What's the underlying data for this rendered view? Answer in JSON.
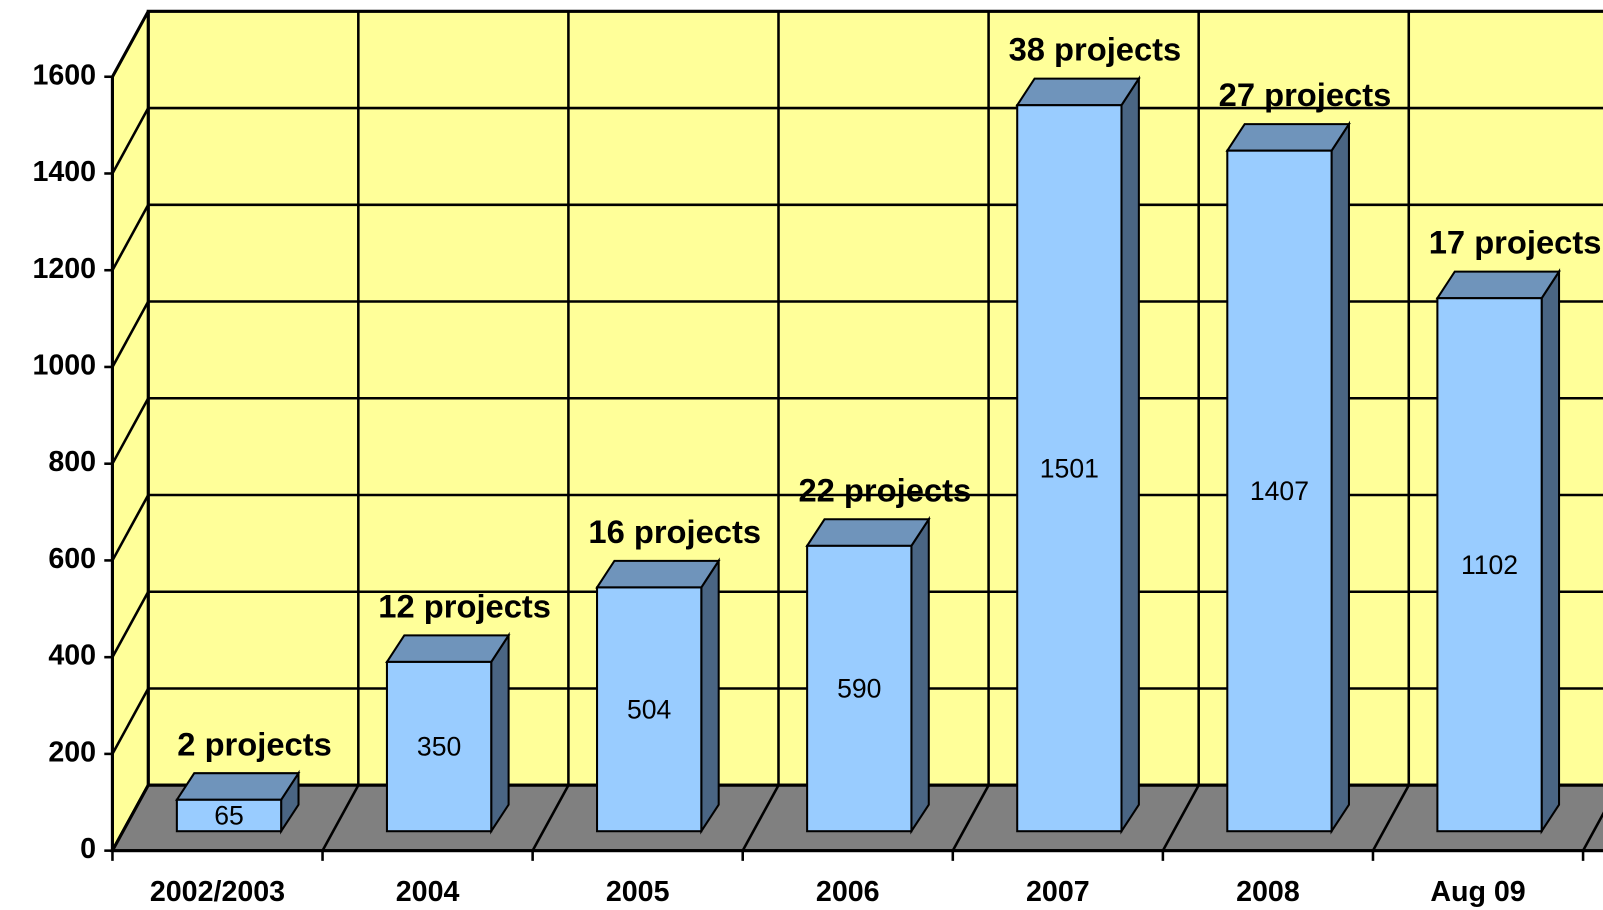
{
  "chart_data": {
    "type": "bar3d",
    "categories": [
      "2002/2003",
      "2004",
      "2005",
      "2006",
      "2007",
      "2008",
      "Aug 09"
    ],
    "values": [
      65,
      350,
      504,
      590,
      1501,
      1407,
      1102
    ],
    "annotations": [
      "2 projects",
      "12 projects",
      "16 projects",
      "22 projects",
      "38 projects",
      "27 projects",
      "17 projects"
    ],
    "color": "#99ccff",
    "wall_color": "#ffff99",
    "floor_color": "#808080",
    "ylim": [
      0,
      1600
    ],
    "yticks": [
      0,
      200,
      400,
      600,
      800,
      1000,
      1200,
      1400,
      1600
    ],
    "grid": true
  }
}
